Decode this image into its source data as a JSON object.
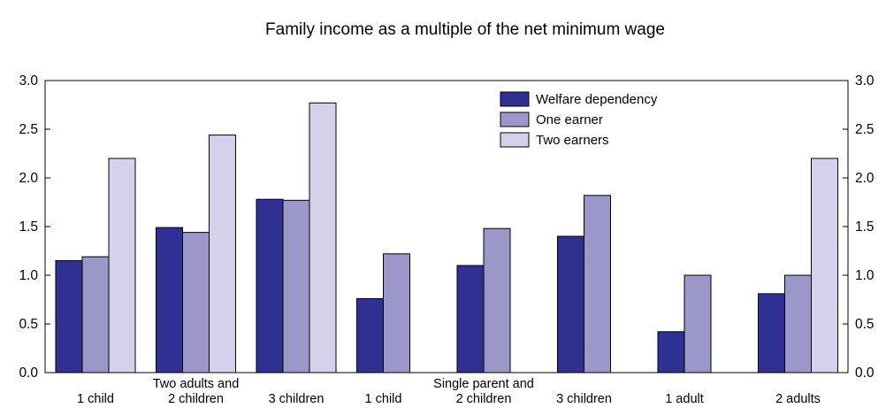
{
  "chart_data": {
    "type": "bar",
    "title": "Family income as a multiple of the net minimum wage",
    "xlabel": "",
    "ylabel": "",
    "ylim": [
      0,
      3.0
    ],
    "yticks": [
      "0.0",
      "0.5",
      "1.0",
      "1.5",
      "2.0",
      "2.5",
      "3.0"
    ],
    "grid": false,
    "legend": "top-center",
    "categories": [
      "1 child",
      "2 children",
      "3 children",
      "1 child",
      "2 children",
      "3 children",
      "1 adult",
      "2 adults"
    ],
    "group_labels": [
      {
        "label": "Two adults and",
        "center_category": 1
      },
      {
        "label": "Single parent and",
        "center_category": 4
      }
    ],
    "series": [
      {
        "name": "Welfare dependency",
        "color": "#2e3192",
        "values": [
          1.15,
          1.49,
          1.78,
          0.76,
          1.1,
          1.4,
          0.42,
          0.81
        ]
      },
      {
        "name": "One earner",
        "color": "#9b97c9",
        "values": [
          1.19,
          1.44,
          1.77,
          1.22,
          1.48,
          1.82,
          1.0,
          1.0
        ]
      },
      {
        "name": "Two earners",
        "color": "#d4d2ea",
        "values": [
          2.2,
          2.44,
          2.77,
          null,
          null,
          null,
          null,
          2.2
        ]
      }
    ]
  }
}
